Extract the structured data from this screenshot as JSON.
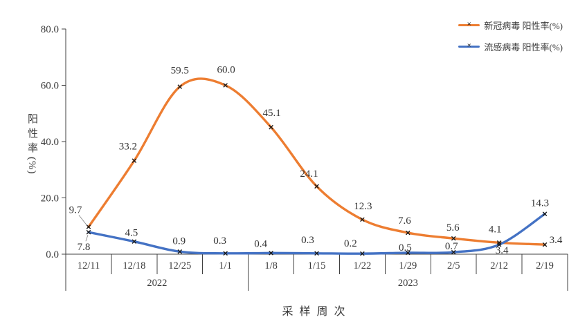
{
  "chart_data": {
    "type": "line",
    "title": "",
    "xlabel": "采样周次",
    "ylabel": "阳性率",
    "ylabel_unit": "(%)",
    "ylim": [
      0,
      80
    ],
    "yticks": [
      0,
      20,
      40,
      60,
      80
    ],
    "grid": false,
    "smooth": true,
    "marker": "x",
    "marker_color": "#1b1b1b",
    "legend_position": "top-right",
    "axis_color": "#404040",
    "label_color": "#333333",
    "categories": [
      "12/11",
      "12/18",
      "12/25",
      "1/1",
      "1/8",
      "1/15",
      "1/22",
      "1/29",
      "2/5",
      "2/12",
      "2/19"
    ],
    "category_groups": [
      {
        "label": "2022",
        "span": 4
      },
      {
        "label": "2023",
        "span": 7
      }
    ],
    "series": [
      {
        "name": "新冠病毒 阳性率(%)",
        "color": "#ED7D31",
        "values": [
          9.7,
          33.2,
          59.5,
          60.0,
          45.1,
          24.1,
          12.3,
          7.6,
          5.6,
          4.1,
          3.4
        ]
      },
      {
        "name": "流感病毒 阳性率(%)",
        "color": "#4472C4",
        "values": [
          7.8,
          4.5,
          0.9,
          0.3,
          0.4,
          0.3,
          0.2,
          0.5,
          0.7,
          3.4,
          14.3
        ]
      }
    ]
  }
}
